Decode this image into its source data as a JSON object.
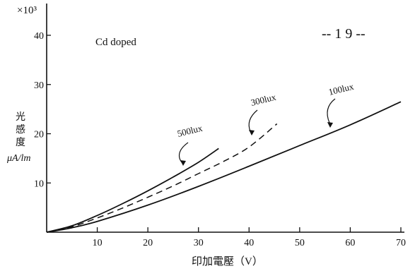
{
  "chart_data": {
    "type": "line",
    "title": "",
    "annotation": "Cd doped",
    "page_number": "-- 1 9 --",
    "xlabel": "印加電壓（V）",
    "ylabel": [
      "光",
      "感",
      "度",
      "μA/lm"
    ],
    "y_multiplier": "×10³",
    "xlim": [
      0,
      70
    ],
    "ylim": [
      0,
      40
    ],
    "x_ticks": [
      10,
      20,
      30,
      40,
      50,
      60,
      70
    ],
    "x_tick_labels": [
      "10",
      "20",
      "30",
      "40",
      "50",
      "60",
      "70"
    ],
    "y_ticks": [
      10,
      20,
      30,
      40
    ],
    "y_tick_labels": [
      "10",
      "20",
      "30",
      "40"
    ],
    "grid": false,
    "series": [
      {
        "name": "500lux",
        "style": "solid",
        "x": [
          0,
          5,
          10,
          15,
          20,
          25,
          30,
          34
        ],
        "y": [
          0,
          1.3,
          3.4,
          5.8,
          8.4,
          11.2,
          14.2,
          17.0
        ]
      },
      {
        "name": "300lux",
        "style": "dashed",
        "x": [
          0,
          5,
          10,
          15,
          20,
          25,
          30,
          35,
          40,
          45.5
        ],
        "y": [
          0,
          1.1,
          2.9,
          4.9,
          7.1,
          9.4,
          11.9,
          14.4,
          17.3,
          22.0
        ]
      },
      {
        "name": "100lux",
        "style": "solid",
        "x": [
          0,
          5,
          10,
          20,
          30,
          40,
          50,
          60,
          70
        ],
        "y": [
          0,
          0.9,
          2.2,
          5.5,
          9.3,
          13.4,
          17.6,
          21.8,
          26.5
        ]
      }
    ]
  }
}
